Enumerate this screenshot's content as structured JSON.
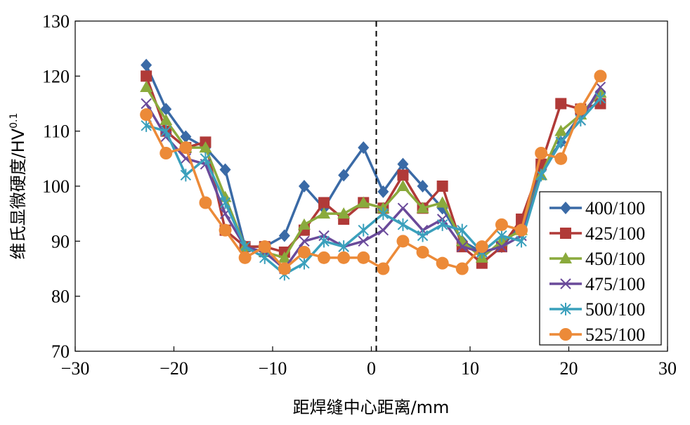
{
  "chart_data": {
    "type": "line",
    "xlabel": "距焊缝中心距离/mm",
    "ylabel": "维氏显微硬度/HV",
    "ylabel_sup": "0.1",
    "xlim": [
      -30,
      30
    ],
    "ylim": [
      70,
      130
    ],
    "xticks": [
      "−30",
      "−20",
      "−10",
      "0",
      "10",
      "20",
      "30"
    ],
    "xtick_values": [
      -30,
      -20,
      -10,
      0,
      10,
      20,
      30
    ],
    "yticks": [
      "70",
      "80",
      "90",
      "100",
      "110",
      "120",
      "130"
    ],
    "ytick_values": [
      70,
      80,
      90,
      100,
      110,
      120,
      130
    ],
    "grid": false,
    "legend_position": "right",
    "reference_line_x": 0.5,
    "x": [
      -22.8,
      -20.8,
      -18.8,
      -16.8,
      -14.8,
      -12.8,
      -10.8,
      -8.8,
      -6.8,
      -4.8,
      -2.8,
      -0.8,
      1.2,
      3.2,
      5.2,
      7.2,
      9.2,
      11.2,
      13.2,
      15.2,
      17.2,
      19.2,
      21.2,
      23.2
    ],
    "series": [
      {
        "name": "400/100",
        "color": "#3a6aa6",
        "marker": "diamond",
        "values": [
          122,
          114,
          109,
          107,
          103,
          89,
          89,
          91,
          100,
          96,
          102,
          107,
          99,
          104,
          100,
          96,
          90,
          88,
          89,
          93,
          103,
          108,
          113,
          117
        ]
      },
      {
        "name": "425/100",
        "color": "#b03a38",
        "marker": "square",
        "values": [
          120,
          110,
          107,
          108,
          92,
          89,
          89,
          88,
          92,
          97,
          94,
          97,
          96,
          102,
          96,
          100,
          89,
          86,
          89,
          94,
          104,
          115,
          114,
          115
        ]
      },
      {
        "name": "450/100",
        "color": "#8aaa3c",
        "marker": "triangle",
        "values": [
          118,
          112,
          107,
          107,
          98,
          89,
          88,
          87,
          93,
          95,
          95,
          97,
          96,
          100,
          96,
          97,
          90,
          87,
          90,
          92,
          102,
          110,
          113,
          117
        ]
      },
      {
        "name": "475/100",
        "color": "#6a4a9a",
        "marker": "x",
        "values": [
          115,
          109,
          105,
          104,
          95,
          89,
          88,
          85,
          90,
          91,
          89,
          90,
          92,
          96,
          92,
          94,
          89,
          88,
          89,
          91,
          102,
          108,
          112,
          118
        ]
      },
      {
        "name": "500/100",
        "color": "#3aa0bc",
        "marker": "star",
        "values": [
          111,
          110,
          102,
          105,
          97,
          89,
          87,
          84,
          86,
          90,
          89,
          92,
          95,
          93,
          91,
          93,
          92,
          88,
          91,
          90,
          102,
          108,
          112,
          116
        ]
      },
      {
        "name": "525/100",
        "color": "#ec8a38",
        "marker": "circle",
        "values": [
          113,
          106,
          107,
          97,
          92,
          87,
          89,
          85,
          88,
          87,
          87,
          87,
          85,
          90,
          88,
          86,
          85,
          89,
          93,
          92,
          106,
          105,
          114,
          120
        ]
      }
    ]
  }
}
